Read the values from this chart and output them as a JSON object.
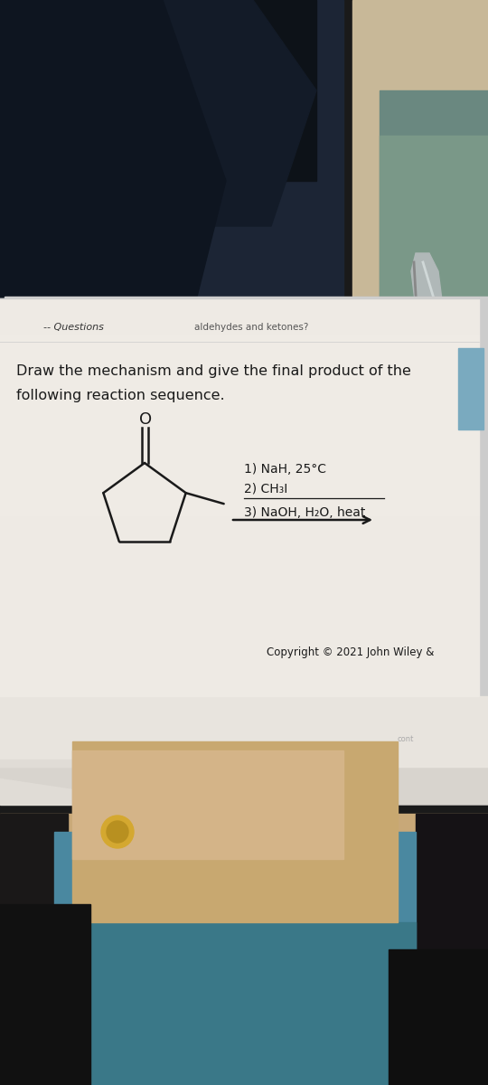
{
  "bg_chair_dark": "#1a1a1a",
  "bg_chair_navy": "#1c2535",
  "bg_chair_medium": "#2a3545",
  "bg_right_teal": "#5a7a7a",
  "bg_right_beige": "#c8b898",
  "chrome_color": "#b0b8b8",
  "chrome_dark": "#888888",
  "paper_color": "#eeeae4",
  "paper_color2": "#f2efe9",
  "blue_tab_color": "#7aaabf",
  "header_text": "-- Questions",
  "header_subtext": "aldehydes and ketones?",
  "main_text_line1": "Draw the mechanism and give the final product of the",
  "main_text_line2": "following reaction sequence.",
  "reagent_line1": "1) NaH, 25°C",
  "reagent_line2": "2) CH₃I",
  "reagent_line3": "3) NaOH, H₂O, heat",
  "copyright_text": "Copyright © 2021 John Wiley &",
  "text_color": "#1a1a1a",
  "bottom_tan1": "#b89868",
  "bottom_tan2": "#c8a878",
  "bottom_dark": "#151515",
  "bottom_blue_pattern": "#4a88a0",
  "bottom_teal_pattern": "#3a7888"
}
